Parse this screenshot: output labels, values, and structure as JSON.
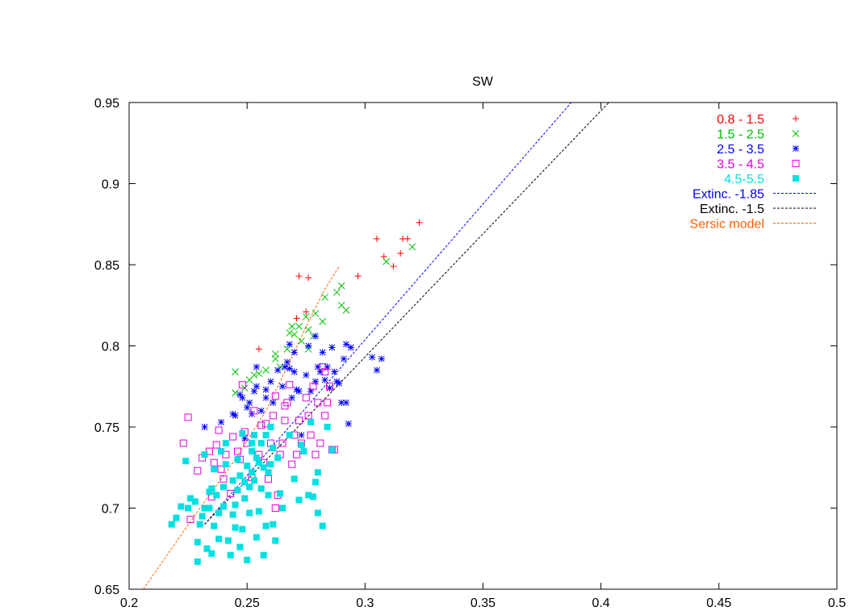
{
  "chart_data": {
    "type": "scatter",
    "title": "SW",
    "xlabel": "",
    "ylabel": "",
    "xlim": [
      0.2,
      0.5
    ],
    "ylim": [
      0.65,
      0.95
    ],
    "xticks": [
      "0.2",
      "0.25",
      "0.3",
      "0.35",
      "0.4",
      "0.45",
      "0.5"
    ],
    "yticks": [
      "0.65",
      "0.7",
      "0.75",
      "0.8",
      "0.85",
      "0.9",
      "0.95"
    ],
    "grid": false,
    "legend_position": "top-right",
    "series": [
      {
        "name": "0.8 - 1.5",
        "marker": "plus",
        "color": "#ff0000",
        "points": [
          [
            0.255,
            0.798
          ],
          [
            0.271,
            0.817
          ],
          [
            0.275,
            0.821
          ],
          [
            0.272,
            0.843
          ],
          [
            0.276,
            0.842
          ],
          [
            0.297,
            0.843
          ],
          [
            0.305,
            0.866
          ],
          [
            0.308,
            0.855
          ],
          [
            0.312,
            0.849
          ],
          [
            0.315,
            0.857
          ],
          [
            0.316,
            0.866
          ],
          [
            0.318,
            0.866
          ],
          [
            0.323,
            0.876
          ]
        ]
      },
      {
        "name": "1.5 - 2.5",
        "marker": "cross",
        "color": "#00c000",
        "points": [
          [
            0.245,
            0.784
          ],
          [
            0.245,
            0.771
          ],
          [
            0.249,
            0.774
          ],
          [
            0.251,
            0.779
          ],
          [
            0.253,
            0.782
          ],
          [
            0.255,
            0.783
          ],
          [
            0.258,
            0.785
          ],
          [
            0.262,
            0.795
          ],
          [
            0.264,
            0.787
          ],
          [
            0.267,
            0.798
          ],
          [
            0.268,
            0.808
          ],
          [
            0.269,
            0.812
          ],
          [
            0.27,
            0.807
          ],
          [
            0.272,
            0.812
          ],
          [
            0.273,
            0.803
          ],
          [
            0.275,
            0.818
          ],
          [
            0.276,
            0.81
          ],
          [
            0.278,
            0.806
          ],
          [
            0.279,
            0.82
          ],
          [
            0.282,
            0.815
          ],
          [
            0.283,
            0.83
          ],
          [
            0.288,
            0.833
          ],
          [
            0.29,
            0.837
          ],
          [
            0.29,
            0.825
          ],
          [
            0.292,
            0.822
          ],
          [
            0.309,
            0.852
          ],
          [
            0.32,
            0.861
          ],
          [
            0.262,
            0.792
          ],
          [
            0.276,
            0.798
          ]
        ]
      },
      {
        "name": "2.5 - 3.5",
        "marker": "star",
        "color": "#0000ff",
        "points": [
          [
            0.232,
            0.75
          ],
          [
            0.239,
            0.753
          ],
          [
            0.244,
            0.758
          ],
          [
            0.245,
            0.757
          ],
          [
            0.247,
            0.77
          ],
          [
            0.248,
            0.768
          ],
          [
            0.249,
            0.743
          ],
          [
            0.25,
            0.762
          ],
          [
            0.251,
            0.765
          ],
          [
            0.252,
            0.758
          ],
          [
            0.253,
            0.772
          ],
          [
            0.254,
            0.775
          ],
          [
            0.254,
            0.787
          ],
          [
            0.256,
            0.76
          ],
          [
            0.258,
            0.773
          ],
          [
            0.26,
            0.778
          ],
          [
            0.261,
            0.765
          ],
          [
            0.263,
            0.785
          ],
          [
            0.265,
            0.775
          ],
          [
            0.266,
            0.787
          ],
          [
            0.267,
            0.79
          ],
          [
            0.268,
            0.786
          ],
          [
            0.268,
            0.801
          ],
          [
            0.269,
            0.768
          ],
          [
            0.27,
            0.784
          ],
          [
            0.271,
            0.773
          ],
          [
            0.272,
            0.772
          ],
          [
            0.273,
            0.745
          ],
          [
            0.275,
            0.782
          ],
          [
            0.277,
            0.772
          ],
          [
            0.279,
            0.806
          ],
          [
            0.28,
            0.787
          ],
          [
            0.281,
            0.784
          ],
          [
            0.282,
            0.796
          ],
          [
            0.283,
            0.779
          ],
          [
            0.284,
            0.787
          ],
          [
            0.285,
            0.774
          ],
          [
            0.286,
            0.799
          ],
          [
            0.287,
            0.784
          ],
          [
            0.288,
            0.778
          ],
          [
            0.289,
            0.777
          ],
          [
            0.29,
            0.765
          ],
          [
            0.291,
            0.792
          ],
          [
            0.292,
            0.765
          ],
          [
            0.292,
            0.801
          ],
          [
            0.293,
            0.752
          ],
          [
            0.294,
            0.799
          ],
          [
            0.303,
            0.793
          ],
          [
            0.305,
            0.785
          ],
          [
            0.307,
            0.792
          ],
          [
            0.276,
            0.8
          ],
          [
            0.279,
            0.778
          ],
          [
            0.27,
            0.796
          ],
          [
            0.258,
            0.768
          ]
        ]
      },
      {
        "name": "3.5 - 4.5",
        "marker": "open-square",
        "color": "#e000e0",
        "points": [
          [
            0.223,
            0.74
          ],
          [
            0.225,
            0.756
          ],
          [
            0.229,
            0.723
          ],
          [
            0.231,
            0.731
          ],
          [
            0.234,
            0.735
          ],
          [
            0.236,
            0.728
          ],
          [
            0.237,
            0.739
          ],
          [
            0.238,
            0.748
          ],
          [
            0.239,
            0.724
          ],
          [
            0.24,
            0.718
          ],
          [
            0.241,
            0.733
          ],
          [
            0.243,
            0.709
          ],
          [
            0.244,
            0.744
          ],
          [
            0.246,
            0.735
          ],
          [
            0.247,
            0.73
          ],
          [
            0.248,
            0.776
          ],
          [
            0.249,
            0.747
          ],
          [
            0.25,
            0.74
          ],
          [
            0.252,
            0.719
          ],
          [
            0.253,
            0.76
          ],
          [
            0.255,
            0.733
          ],
          [
            0.256,
            0.751
          ],
          [
            0.257,
            0.728
          ],
          [
            0.258,
            0.752
          ],
          [
            0.259,
            0.718
          ],
          [
            0.26,
            0.74
          ],
          [
            0.261,
            0.757
          ],
          [
            0.262,
            0.769
          ],
          [
            0.263,
            0.708
          ],
          [
            0.264,
            0.733
          ],
          [
            0.265,
            0.74
          ],
          [
            0.266,
            0.754
          ],
          [
            0.267,
            0.765
          ],
          [
            0.268,
            0.776
          ],
          [
            0.269,
            0.727
          ],
          [
            0.27,
            0.745
          ],
          [
            0.271,
            0.733
          ],
          [
            0.272,
            0.754
          ],
          [
            0.273,
            0.74
          ],
          [
            0.275,
            0.768
          ],
          [
            0.276,
            0.757
          ],
          [
            0.277,
            0.745
          ],
          [
            0.278,
            0.775
          ],
          [
            0.279,
            0.733
          ],
          [
            0.28,
            0.765
          ],
          [
            0.281,
            0.74
          ],
          [
            0.282,
            0.787
          ],
          [
            0.283,
            0.757
          ],
          [
            0.284,
            0.765
          ],
          [
            0.285,
            0.775
          ],
          [
            0.286,
            0.736
          ],
          [
            0.287,
            0.736
          ],
          [
            0.262,
            0.7
          ],
          [
            0.226,
            0.693
          ],
          [
            0.235,
            0.707
          ],
          [
            0.283,
            0.784
          ],
          [
            0.266,
            0.763
          ]
        ]
      },
      {
        "name": "4.5-5.5",
        "marker": "filled-square",
        "color": "#00e0e0",
        "points": [
          [
            0.218,
            0.69
          ],
          [
            0.22,
            0.694
          ],
          [
            0.222,
            0.701
          ],
          [
            0.224,
            0.729
          ],
          [
            0.225,
            0.7
          ],
          [
            0.226,
            0.706
          ],
          [
            0.228,
            0.704
          ],
          [
            0.229,
            0.667
          ],
          [
            0.229,
            0.679
          ],
          [
            0.23,
            0.69
          ],
          [
            0.231,
            0.695
          ],
          [
            0.232,
            0.7
          ],
          [
            0.232,
            0.733
          ],
          [
            0.233,
            0.675
          ],
          [
            0.234,
            0.71
          ],
          [
            0.234,
            0.7
          ],
          [
            0.235,
            0.672
          ],
          [
            0.235,
            0.712
          ],
          [
            0.236,
            0.689
          ],
          [
            0.236,
            0.724
          ],
          [
            0.237,
            0.708
          ],
          [
            0.238,
            0.697
          ],
          [
            0.238,
            0.681
          ],
          [
            0.239,
            0.735
          ],
          [
            0.24,
            0.713
          ],
          [
            0.24,
            0.701
          ],
          [
            0.241,
            0.74
          ],
          [
            0.242,
            0.68
          ],
          [
            0.243,
            0.671
          ],
          [
            0.244,
            0.717
          ],
          [
            0.245,
            0.702
          ],
          [
            0.245,
            0.688
          ],
          [
            0.246,
            0.711
          ],
          [
            0.246,
            0.73
          ],
          [
            0.247,
            0.72
          ],
          [
            0.247,
            0.676
          ],
          [
            0.248,
            0.687
          ],
          [
            0.249,
            0.706
          ],
          [
            0.249,
            0.716
          ],
          [
            0.25,
            0.726
          ],
          [
            0.25,
            0.668
          ],
          [
            0.251,
            0.713
          ],
          [
            0.251,
            0.697
          ],
          [
            0.252,
            0.722
          ],
          [
            0.252,
            0.74
          ],
          [
            0.253,
            0.717
          ],
          [
            0.253,
            0.745
          ],
          [
            0.254,
            0.731
          ],
          [
            0.254,
            0.682
          ],
          [
            0.255,
            0.698
          ],
          [
            0.255,
            0.728
          ],
          [
            0.256,
            0.712
          ],
          [
            0.257,
            0.725
          ],
          [
            0.257,
            0.671
          ],
          [
            0.258,
            0.745
          ],
          [
            0.258,
            0.689
          ],
          [
            0.259,
            0.708
          ],
          [
            0.259,
            0.722
          ],
          [
            0.26,
            0.727
          ],
          [
            0.26,
            0.75
          ],
          [
            0.261,
            0.737
          ],
          [
            0.261,
            0.69
          ],
          [
            0.262,
            0.68
          ],
          [
            0.263,
            0.731
          ],
          [
            0.264,
            0.709
          ],
          [
            0.265,
            0.7
          ],
          [
            0.268,
            0.745
          ],
          [
            0.27,
            0.718
          ],
          [
            0.272,
            0.705
          ],
          [
            0.273,
            0.739
          ],
          [
            0.274,
            0.735
          ],
          [
            0.276,
            0.708
          ],
          [
            0.277,
            0.753
          ],
          [
            0.278,
            0.707
          ],
          [
            0.279,
            0.716
          ],
          [
            0.28,
            0.697
          ],
          [
            0.28,
            0.722
          ],
          [
            0.282,
            0.689
          ],
          [
            0.284,
            0.75
          ],
          [
            0.286,
            0.736
          ],
          [
            0.244,
            0.696
          ],
          [
            0.248,
            0.746
          ],
          [
            0.252,
            0.735
          ],
          [
            0.256,
            0.74
          ],
          [
            0.241,
            0.727
          ]
        ]
      }
    ],
    "lines": [
      {
        "name": "Extinc. -1.85",
        "style": "dashed",
        "color": "#0000ff",
        "points": [
          [
            0.232,
            0.69
          ],
          [
            0.388,
            0.951
          ]
        ]
      },
      {
        "name": "Extinc. -1.5",
        "style": "dashed",
        "color": "#000000",
        "points": [
          [
            0.232,
            0.69
          ],
          [
            0.404,
            0.951
          ]
        ]
      },
      {
        "name": "Sersic model",
        "style": "dashed",
        "color": "#ff6000",
        "points": [
          [
            0.206,
            0.65
          ],
          [
            0.217,
            0.673
          ],
          [
            0.23,
            0.7
          ],
          [
            0.245,
            0.73
          ],
          [
            0.258,
            0.76
          ],
          [
            0.268,
            0.79
          ],
          [
            0.276,
            0.815
          ],
          [
            0.283,
            0.835
          ],
          [
            0.289,
            0.849
          ]
        ]
      }
    ]
  }
}
